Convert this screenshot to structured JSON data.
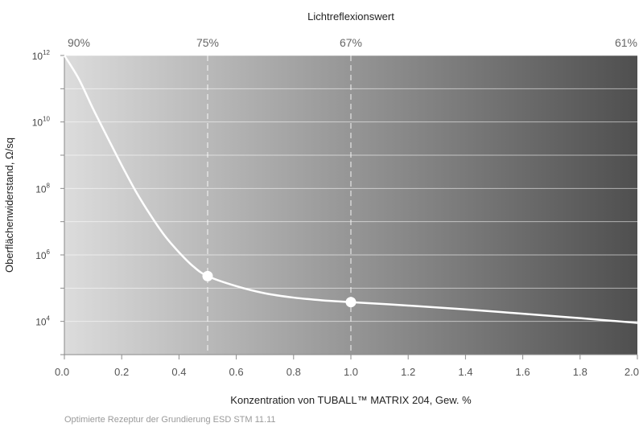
{
  "chart_data": {
    "type": "line",
    "top_axis_title": "Lichtreflexionswert",
    "top_ticks": [
      {
        "x": 0.0,
        "label": "90%"
      },
      {
        "x": 0.5,
        "label": "75%"
      },
      {
        "x": 1.0,
        "label": "67%"
      },
      {
        "x": 2.0,
        "label": "61%"
      }
    ],
    "xlabel": "Konzentration von TUBALL™ MATRIX 204, Gew. %",
    "ylabel": "Oberflächenwiderstand, Ω/sq",
    "xlim": [
      0.0,
      2.0
    ],
    "y_log_exponent_range": [
      3,
      12
    ],
    "y_scale": "log",
    "x_ticks": [
      "0.0",
      "0.2",
      "0.4",
      "0.6",
      "0.8",
      "1.0",
      "1.2",
      "1.4",
      "1.6",
      "1.8",
      "2.0"
    ],
    "y_ticks": [
      {
        "exp": 12,
        "base": "10",
        "sup": "12"
      },
      {
        "exp": 10,
        "base": "10",
        "sup": "10"
      },
      {
        "exp": 8,
        "base": "10",
        "sup": "8"
      },
      {
        "exp": 6,
        "base": "10",
        "sup": "6"
      },
      {
        "exp": 4,
        "base": "10",
        "sup": "4"
      }
    ],
    "series": [
      {
        "x": [
          0.0,
          0.05,
          0.1,
          0.15,
          0.2,
          0.25,
          0.3,
          0.35,
          0.4,
          0.45,
          0.5,
          0.6,
          0.7,
          0.8,
          0.9,
          1.0,
          1.2,
          1.4,
          1.6,
          1.8,
          2.0
        ],
        "y": [
          1000000000000.0,
          200000000000.0,
          25000000000.0,
          3500000000.0,
          500000000.0,
          80000000.0,
          16000000.0,
          3800000.0,
          1200000.0,
          450000.0,
          230000.0,
          115000.0,
          70000.0,
          52000.0,
          43000.0,
          38000.0,
          30000.0,
          23000.0,
          17000.0,
          12500.0,
          9000.0
        ]
      }
    ],
    "markers": [
      {
        "x": 0.5,
        "y": 230000.0
      },
      {
        "x": 1.0,
        "y": 38000.0
      }
    ],
    "reference_lines_x": [
      0.5,
      1.0
    ],
    "background_gradient": [
      "#dcdcdc",
      "#4f4f4f"
    ],
    "curve_color": "#ffffff",
    "grid": true
  },
  "footnote": "Optimierte Rezeptur der Grundierung ESD STM 11.11"
}
